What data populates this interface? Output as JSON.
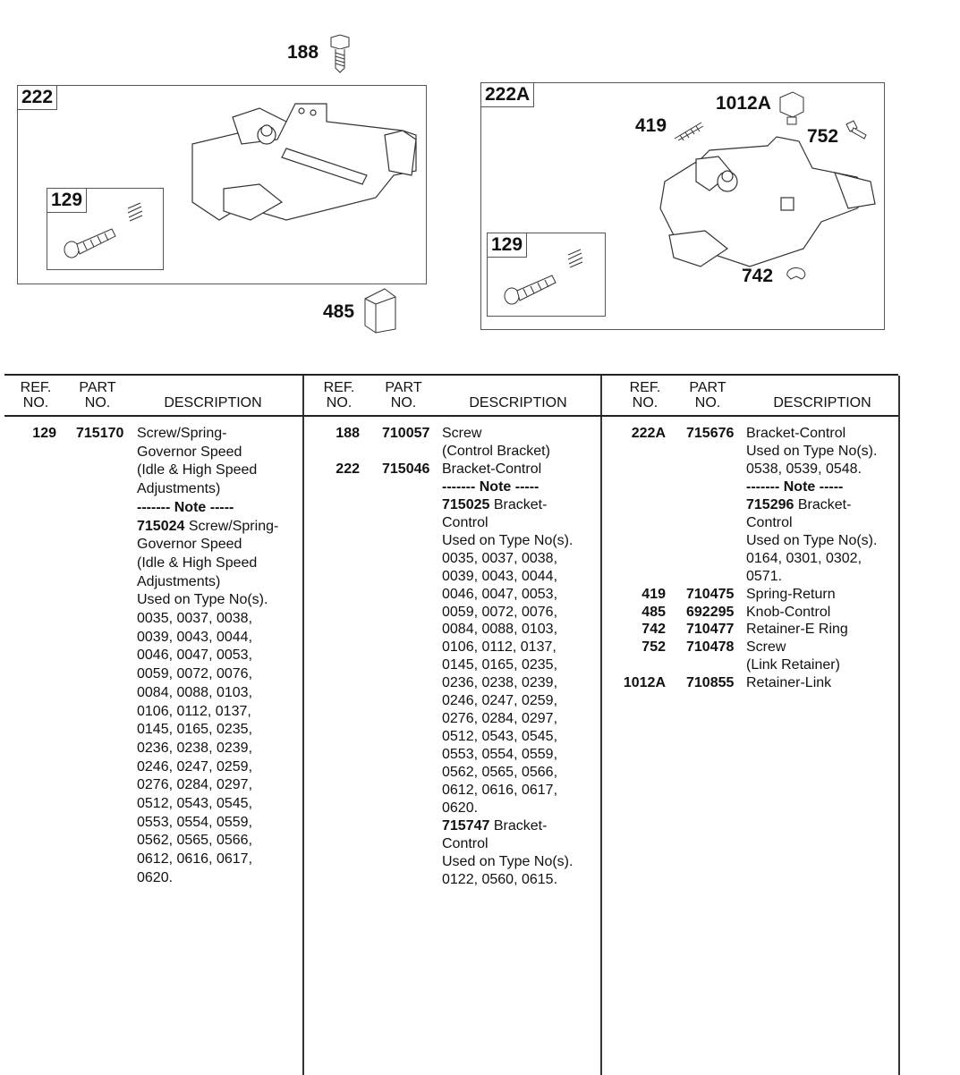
{
  "diagram": {
    "callouts": {
      "c188": "188",
      "c485": "485",
      "c222": "222",
      "c129a": "129",
      "c222A": "222A",
      "c129b": "129",
      "c1012A": "1012A",
      "c419": "419",
      "c752": "752",
      "c742": "742"
    }
  },
  "table": {
    "headers": {
      "ref": "REF.\nNO.",
      "part": "PART\nNO.",
      "desc": "DESCRIPTION"
    },
    "columns": [
      [
        {
          "ref": "129",
          "part": "715170",
          "text": "Screw/Spring-"
        },
        {
          "text": "Governor Speed"
        },
        {
          "text": "(Idle & High Speed"
        },
        {
          "text": "Adjustments)"
        },
        {
          "bold": "------- Note -----"
        },
        {
          "bold": "715024",
          "text": " Screw/Spring-"
        },
        {
          "text": "Governor Speed"
        },
        {
          "text": "(Idle & High Speed"
        },
        {
          "text": "Adjustments)"
        },
        {
          "text": "Used on Type No(s)."
        },
        {
          "text": "0035, 0037, 0038,"
        },
        {
          "text": "0039, 0043, 0044,"
        },
        {
          "text": "0046, 0047, 0053,"
        },
        {
          "text": "0059, 0072, 0076,"
        },
        {
          "text": "0084, 0088, 0103,"
        },
        {
          "text": "0106, 0112, 0137,"
        },
        {
          "text": "0145, 0165, 0235,"
        },
        {
          "text": "0236, 0238, 0239,"
        },
        {
          "text": "0246, 0247, 0259,"
        },
        {
          "text": "0276, 0284, 0297,"
        },
        {
          "text": "0512, 0543, 0545,"
        },
        {
          "text": "0553, 0554, 0559,"
        },
        {
          "text": "0562, 0565, 0566,"
        },
        {
          "text": "0612, 0616, 0617,"
        },
        {
          "text": "0620."
        }
      ],
      [
        {
          "ref": "188",
          "part": "710057",
          "text": "Screw"
        },
        {
          "text": "(Control Bracket)"
        },
        {
          "ref": "222",
          "part": "715046",
          "text": "Bracket-Control"
        },
        {
          "bold": "------- Note -----"
        },
        {
          "bold": "715025",
          "text": " Bracket-"
        },
        {
          "text": "Control"
        },
        {
          "text": "Used on Type No(s)."
        },
        {
          "text": "0035, 0037, 0038,"
        },
        {
          "text": "0039, 0043, 0044,"
        },
        {
          "text": "0046, 0047, 0053,"
        },
        {
          "text": "0059, 0072, 0076,"
        },
        {
          "text": "0084, 0088, 0103,"
        },
        {
          "text": "0106, 0112, 0137,"
        },
        {
          "text": "0145, 0165, 0235,"
        },
        {
          "text": "0236, 0238, 0239,"
        },
        {
          "text": "0246, 0247, 0259,"
        },
        {
          "text": "0276, 0284, 0297,"
        },
        {
          "text": "0512, 0543, 0545,"
        },
        {
          "text": "0553, 0554, 0559,"
        },
        {
          "text": "0562, 0565, 0566,"
        },
        {
          "text": "0612, 0616, 0617,"
        },
        {
          "text": "0620."
        },
        {
          "bold": "715747",
          "text": " Bracket-"
        },
        {
          "text": "Control"
        },
        {
          "text": "Used on Type No(s)."
        },
        {
          "text": "0122, 0560, 0615."
        }
      ],
      [
        {
          "ref": "222A",
          "part": "715676",
          "text": "Bracket-Control"
        },
        {
          "text": "Used on Type No(s)."
        },
        {
          "text": "0538, 0539, 0548."
        },
        {
          "bold": "------- Note -----"
        },
        {
          "bold": "715296",
          "text": " Bracket-"
        },
        {
          "text": "Control"
        },
        {
          "text": "Used on Type No(s)."
        },
        {
          "text": "0164, 0301, 0302,"
        },
        {
          "text": "0571."
        },
        {
          "ref": "419",
          "part": "710475",
          "text": "Spring-Return"
        },
        {
          "ref": "485",
          "part": "692295",
          "text": "Knob-Control"
        },
        {
          "ref": "742",
          "part": "710477",
          "text": "Retainer-E Ring"
        },
        {
          "ref": "752",
          "part": "710478",
          "text": "Screw"
        },
        {
          "text": "(Link Retainer)"
        },
        {
          "ref": "1012A",
          "part": "710855",
          "text": "Retainer-Link"
        }
      ]
    ]
  }
}
